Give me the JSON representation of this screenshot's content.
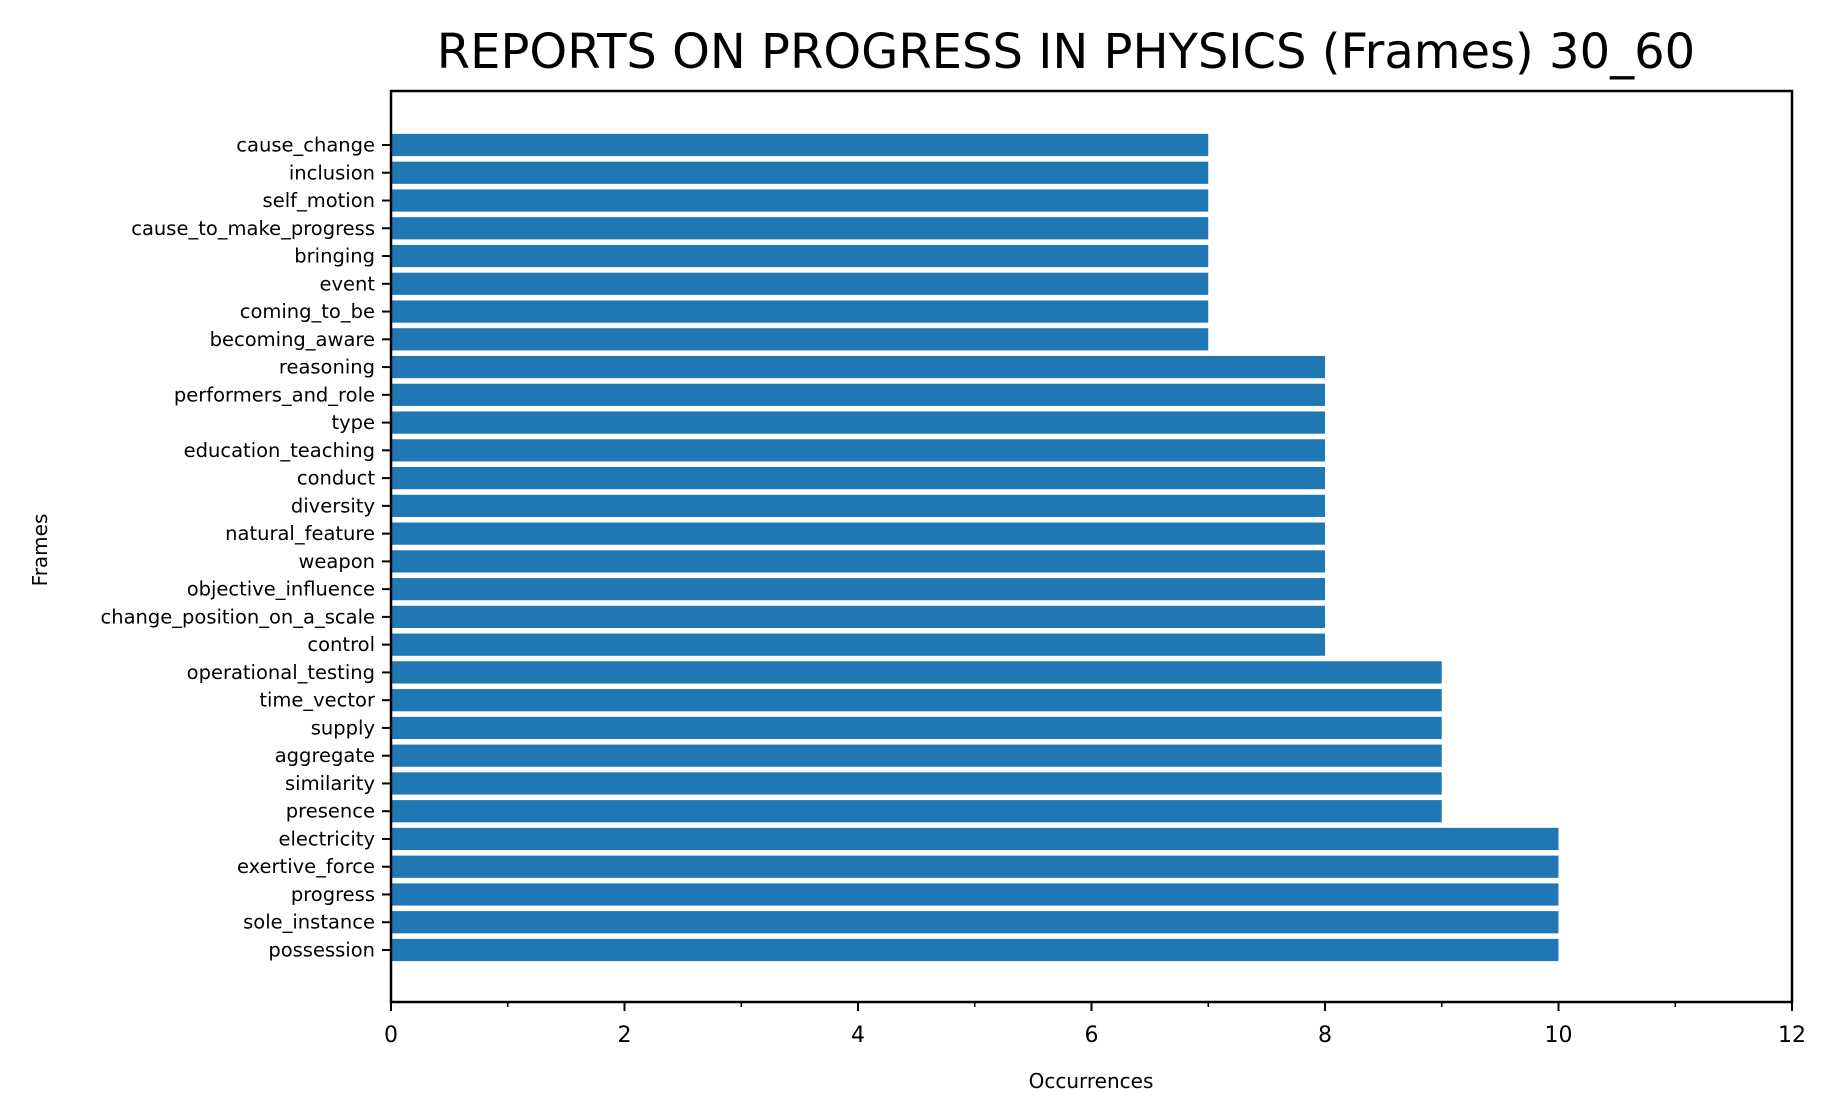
{
  "chart_data": {
    "type": "bar",
    "orientation": "horizontal",
    "title": "REPORTS ON PROGRESS IN PHYSICS (Frames) 30_60",
    "xlabel": "Occurrences",
    "ylabel": "Frames",
    "xlim": [
      0,
      12
    ],
    "x_ticks": [
      0,
      2,
      4,
      6,
      8,
      10,
      12
    ],
    "grid": false,
    "bar_color": "#1f77b4",
    "categories": [
      "cause_change",
      "inclusion",
      "self_motion",
      "cause_to_make_progress",
      "bringing",
      "event",
      "coming_to_be",
      "becoming_aware",
      "reasoning",
      "performers_and_role",
      "type",
      "education_teaching",
      "conduct",
      "diversity",
      "natural_feature",
      "weapon",
      "objective_influence",
      "change_position_on_a_scale",
      "control",
      "operational_testing",
      "time_vector",
      "supply",
      "aggregate",
      "similarity",
      "presence",
      "electricity",
      "exertive_force",
      "progress",
      "sole_instance",
      "possession"
    ],
    "values": [
      7,
      7,
      7,
      7,
      7,
      7,
      7,
      7,
      8,
      8,
      8,
      8,
      8,
      8,
      8,
      8,
      8,
      8,
      8,
      9,
      9,
      9,
      9,
      9,
      9,
      10,
      10,
      10,
      10,
      10
    ]
  }
}
